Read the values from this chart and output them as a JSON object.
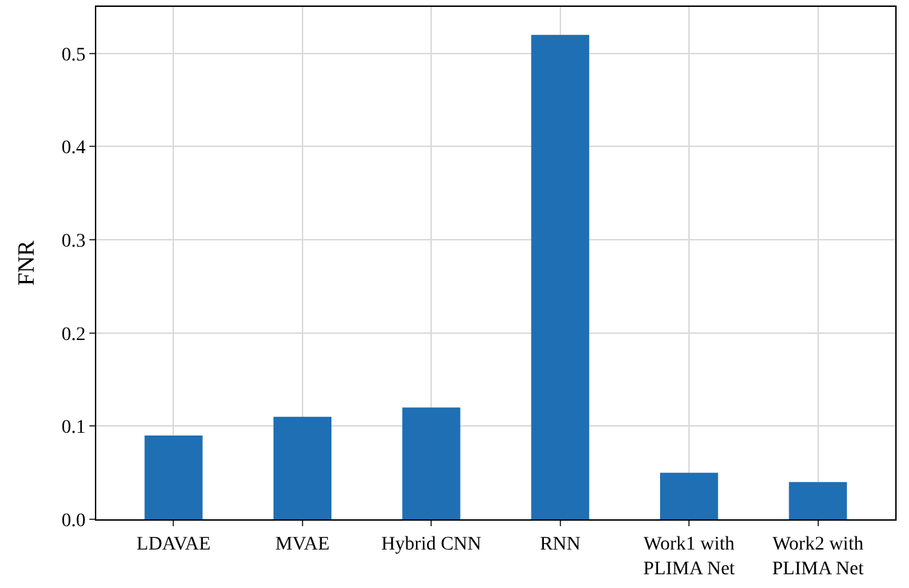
{
  "chart_data": {
    "type": "bar",
    "ylabel": "FNR",
    "categories": [
      "LDAVAE",
      "MVAE",
      "Hybrid CNN",
      "RNN",
      "Work1 with\nPLIMA Net",
      "Work2 with\nPLIMA Net"
    ],
    "values": [
      0.09,
      0.11,
      0.12,
      0.52,
      0.05,
      0.04
    ],
    "color": "#1f6fb4",
    "ylim": [
      0,
      0.55
    ],
    "yticks": [
      {
        "value": 0,
        "label": "0.0"
      },
      0.1,
      0.2,
      0.3,
      0.4,
      0.5
    ],
    "grid": true
  }
}
